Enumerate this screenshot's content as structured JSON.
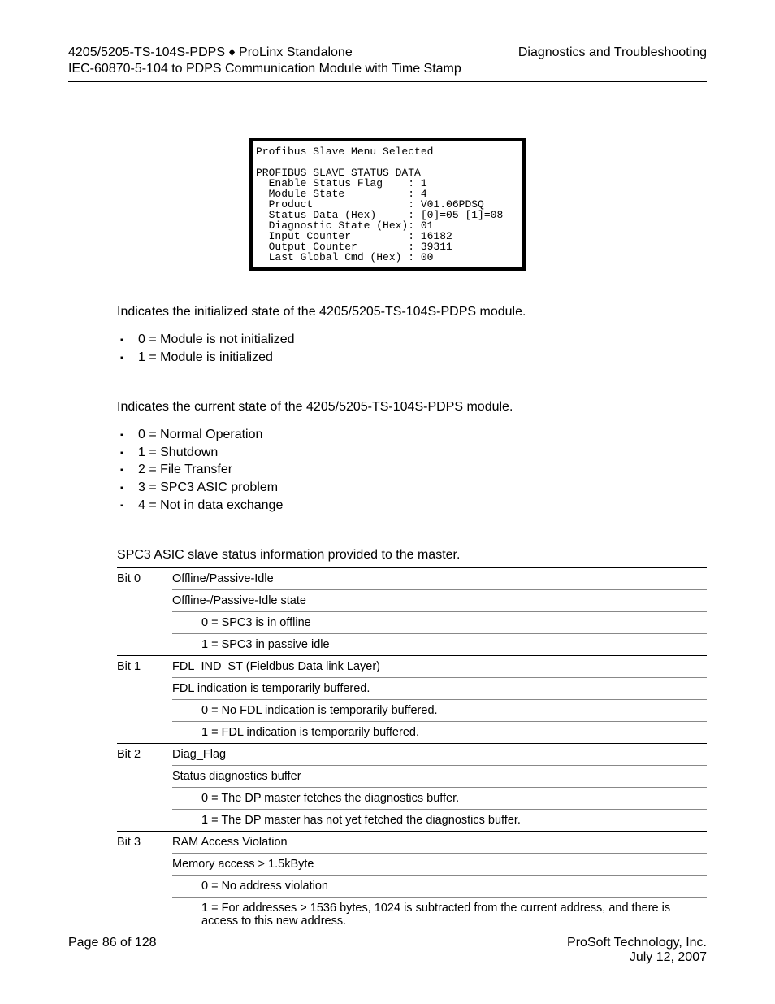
{
  "header": {
    "left": "4205/5205-TS-104S-PDPS ♦ ProLinx Standalone",
    "right": "Diagnostics and Troubleshooting",
    "sub": "IEC-60870-5-104 to PDPS Communication Module with Time Stamp"
  },
  "terminal": {
    "title": "Profibus Slave Menu Selected",
    "heading": "PROFIBUS SLAVE STATUS DATA",
    "rows": [
      {
        "label": "Enable Status Flag",
        "value": "1"
      },
      {
        "label": "Module State",
        "value": "4"
      },
      {
        "label": "Product",
        "value": "V01.06PDSQ"
      },
      {
        "label": "Status Data (Hex)",
        "value": "[0]=05 [1]=08"
      },
      {
        "label": "Diagnostic State (Hex)",
        "value": "01"
      },
      {
        "label": "Input Counter",
        "value": "16182"
      },
      {
        "label": "Output Counter",
        "value": "39311"
      },
      {
        "label": "Last Global Cmd (Hex)",
        "value": "00"
      }
    ]
  },
  "sections": {
    "enable": {
      "intro": "Indicates the initialized state of the 4205/5205-TS-104S-PDPS module.",
      "items": [
        "0 = Module is not initialized",
        "1 = Module is initialized"
      ]
    },
    "module": {
      "intro": "Indicates the current state of the 4205/5205-TS-104S-PDPS module.",
      "items": [
        "0 = Normal Operation",
        "1 = Shutdown",
        "2 = File Transfer",
        "3 = SPC3 ASIC problem",
        "4 = Not in data exchange"
      ]
    },
    "status": {
      "intro": "SPC3 ASIC slave status information provided to the master."
    }
  },
  "bits_table": [
    {
      "bit": "Bit 0",
      "title": "Offline/Passive-Idle",
      "sub": "Offline-/Passive-Idle state",
      "opts": [
        "0 = SPC3 is in offline",
        "1 = SPC3 in passive idle"
      ]
    },
    {
      "bit": "Bit 1",
      "title": "FDL_IND_ST (Fieldbus Data link Layer)",
      "sub": "FDL indication is temporarily buffered.",
      "opts": [
        "0 = No FDL indication is temporarily buffered.",
        "1 = FDL indication is temporarily buffered."
      ]
    },
    {
      "bit": "Bit 2",
      "title": "Diag_Flag",
      "sub": "Status diagnostics buffer",
      "opts": [
        "0 = The DP master fetches the diagnostics buffer.",
        "1 = The DP master has not yet fetched the diagnostics buffer."
      ]
    },
    {
      "bit": "Bit 3",
      "title": "RAM Access Violation",
      "sub": "Memory access > 1.5kByte",
      "opts": [
        "0 = No address violation",
        "1 = For addresses > 1536 bytes, 1024 is subtracted from the current address, and there is access to this new address."
      ]
    }
  ],
  "footer": {
    "left": "Page 86 of 128",
    "right1": "ProSoft Technology, Inc.",
    "right2": "July 12, 2007"
  }
}
